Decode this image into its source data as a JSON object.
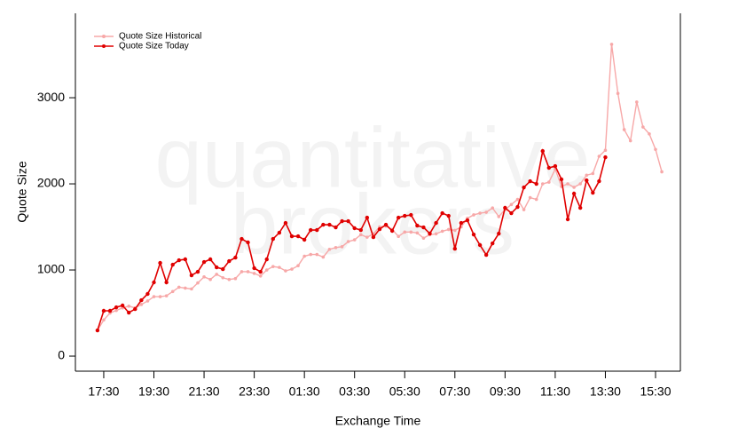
{
  "chart_data": {
    "type": "line",
    "watermark": [
      "quantitative",
      "brokers"
    ],
    "xlabel": "Exchange Time",
    "ylabel": "Quote Size",
    "x": [
      0.25,
      0.5,
      0.75,
      1,
      1.25,
      1.5,
      1.75,
      2,
      2.25,
      2.5,
      2.75,
      3,
      3.25,
      3.5,
      3.75,
      4,
      4.25,
      4.5,
      4.75,
      5,
      5.25,
      5.5,
      5.75,
      6,
      6.25,
      6.5,
      6.75,
      7,
      7.25,
      7.5,
      7.75,
      8,
      8.25,
      8.5,
      8.75,
      9,
      9.25,
      9.5,
      9.75,
      10,
      10.25,
      10.5,
      10.75,
      11,
      11.25,
      11.5,
      11.75,
      12,
      12.25,
      12.5,
      12.75,
      13,
      13.25,
      13.5,
      13.75,
      14,
      14.25,
      14.5,
      14.75,
      15,
      15.25,
      15.5,
      15.75,
      16,
      16.25,
      16.5,
      16.75,
      17,
      17.25,
      17.5,
      17.75,
      18,
      18.25,
      18.5,
      18.75,
      19,
      19.25,
      19.5,
      19.75,
      20,
      20.25,
      20.5,
      20.75,
      21,
      21.25,
      21.5,
      21.75,
      22,
      22.25,
      22.5,
      22.75
    ],
    "series": [
      {
        "name": "Quote Size Historical",
        "color": "#f7a8a8",
        "values": [
          299,
          420,
          500,
          530,
          560,
          580,
          560,
          600,
          640,
          690,
          690,
          700,
          750,
          800,
          790,
          780,
          850,
          920,
          890,
          950,
          910,
          890,
          900,
          980,
          980,
          960,
          930,
          1000,
          1040,
          1030,
          990,
          1010,
          1050,
          1160,
          1180,
          1180,
          1150,
          1240,
          1260,
          1270,
          1330,
          1350,
          1410,
          1380,
          1420,
          1500,
          1510,
          1470,
          1390,
          1440,
          1440,
          1430,
          1370,
          1410,
          1420,
          1450,
          1470,
          1460,
          1500,
          1600,
          1640,
          1660,
          1670,
          1720,
          1620,
          1700,
          1760,
          1820,
          1700,
          1840,
          1820,
          2000,
          2020,
          2170,
          1970,
          2000,
          1960,
          2000,
          2100,
          2120,
          2320,
          2390,
          3620,
          3050,
          2630,
          2500,
          2950,
          2660,
          2580,
          2400,
          2140
        ]
      },
      {
        "name": "Quote Size Today",
        "color": "#e00000",
        "values": [
          299,
          526,
          526,
          567,
          588,
          505,
          546,
          649,
          722,
          856,
          1082,
          856,
          1062,
          1113,
          1124,
          938,
          979,
          1093,
          1124,
          1031,
          1010,
          1103,
          1144,
          1361,
          1320,
          1021,
          979,
          1124,
          1361,
          1433,
          1546,
          1392,
          1392,
          1351,
          1464,
          1464,
          1526,
          1526,
          1495,
          1567,
          1567,
          1485,
          1464,
          1608,
          1381,
          1474,
          1526,
          1454,
          1608,
          1629,
          1639,
          1515,
          1495,
          1423,
          1546,
          1660,
          1629,
          1247,
          1546,
          1577,
          1412,
          1289,
          1175,
          1309,
          1423,
          1722,
          1660,
          1732,
          1959,
          2031,
          2000,
          2381,
          2186,
          2206,
          2052,
          1588,
          1887,
          1722,
          2041,
          1897,
          2031,
          2309,
          null,
          null,
          null,
          null,
          null,
          null,
          null,
          null,
          null
        ]
      }
    ],
    "xlim": [
      -0.63,
      23.49
    ],
    "xticks": [
      {
        "value": 0.5,
        "label": "17:30"
      },
      {
        "value": 2.5,
        "label": "19:30"
      },
      {
        "value": 4.5,
        "label": "21:30"
      },
      {
        "value": 6.5,
        "label": "23:30"
      },
      {
        "value": 8.5,
        "label": "01:30"
      },
      {
        "value": 10.5,
        "label": "03:30"
      },
      {
        "value": 12.5,
        "label": "05:30"
      },
      {
        "value": 14.5,
        "label": "07:30"
      },
      {
        "value": 16.5,
        "label": "09:30"
      },
      {
        "value": 18.5,
        "label": "11:30"
      },
      {
        "value": 20.5,
        "label": "13:30"
      },
      {
        "value": 22.5,
        "label": "15:30"
      }
    ],
    "ylim": [
      -175,
      3980
    ],
    "yticks": [
      0,
      1000,
      2000,
      3000
    ],
    "legend": "top-left"
  }
}
